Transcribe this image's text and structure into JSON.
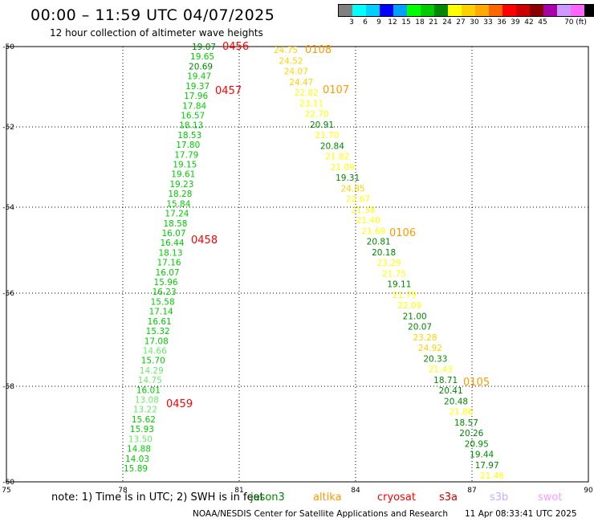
{
  "title": "00:00 – 11:59 UTC 04/07/2025",
  "subtitle": "12 hour collection of altimeter wave heights",
  "legend": {
    "colors": [
      "#808080",
      "#00ffff",
      "#00d0ff",
      "#0000ff",
      "#00a0ff",
      "#00ff00",
      "#00cc00",
      "#008800",
      "#ffff00",
      "#ffd000",
      "#ffaa00",
      "#ff6600",
      "#ff0000",
      "#cc0000",
      "#880000",
      "#aa00aa",
      "#cc99ff",
      "#ff66ff",
      "#000000"
    ],
    "labels": [
      "3",
      "6",
      "9",
      "12",
      "15",
      "18",
      "21",
      "24",
      "27",
      "30",
      "33",
      "36",
      "39",
      "42",
      "45",
      "70 (ft)"
    ]
  },
  "axes": {
    "x_ticks": [
      "75",
      "78",
      "81",
      "84",
      "87",
      "90"
    ],
    "y_ticks": [
      "-50",
      "-52",
      "-54",
      "-56",
      "-58",
      "-60"
    ]
  },
  "tracks": [
    {
      "values": [
        "19.07",
        "19.65",
        "20.69",
        "19.47",
        "19.37",
        "17.96",
        "17.84",
        "16.57",
        "18.13",
        "18.53",
        "17.80",
        "17.79",
        "19.15",
        "19.61",
        "19.23",
        "18.28",
        "15.84",
        "17.24",
        "18.58",
        "16.07",
        "16.44",
        "18.13",
        "17.16",
        "16.07",
        "15.96",
        "16.23",
        "15.58",
        "17.14",
        "16.61",
        "15.32",
        "17.08",
        "14.66",
        "15.70",
        "14.29",
        "14.75",
        "16.01",
        "13.08",
        "13.22",
        "15.62",
        "15.93",
        "13.50",
        "14.88",
        "14.03",
        "15.89"
      ],
      "colors": [
        "#008800",
        "#00cc00",
        "#008800",
        "#00cc00",
        "#00cc00",
        "#00cc00",
        "#00cc00",
        "#00cc00",
        "#00cc00",
        "#00cc00",
        "#00cc00",
        "#00cc00",
        "#00cc00",
        "#00cc00",
        "#00cc00",
        "#00cc00",
        "#00cc00",
        "#00cc00",
        "#00cc00",
        "#00cc00",
        "#00cc00",
        "#00cc00",
        "#00cc00",
        "#00cc00",
        "#00cc00",
        "#00cc00",
        "#00cc00",
        "#00cc00",
        "#00cc00",
        "#00cc00",
        "#00cc00",
        "#66ee66",
        "#00cc00",
        "#66ee66",
        "#66ee66",
        "#00cc00",
        "#66ee66",
        "#66ee66",
        "#00cc00",
        "#00cc00",
        "#66ee66",
        "#00cc00",
        "#00cc00",
        "#00cc00"
      ]
    },
    {
      "values": [
        "24.75",
        "24.52",
        "24.07",
        "24.47",
        "22.82",
        "23.11",
        "22.70",
        "20.91",
        "21.70",
        "20.84",
        "21.82",
        "21.09",
        "19.31",
        "24.85",
        "22.67",
        "21.38",
        "21.40",
        "21.69",
        "20.81",
        "20.18",
        "23.29",
        "21.75",
        "19.11",
        "21.79",
        "22.09",
        "21.00",
        "20.07",
        "23.28",
        "24.92",
        "20.33",
        "21.43",
        "18.71",
        "20.41",
        "20.48",
        "21.86",
        "18.57",
        "20.26",
        "20.95",
        "19.44",
        "17.97",
        "21.46"
      ],
      "colors": [
        "#ffd000",
        "#ffd000",
        "#ffd000",
        "#ffd000",
        "#ffff00",
        "#ffff00",
        "#ffff00",
        "#008800",
        "#ffff00",
        "#008800",
        "#ffff00",
        "#ffff00",
        "#008800",
        "#ffd000",
        "#ffff00",
        "#ffff00",
        "#ffff00",
        "#ffff00",
        "#008800",
        "#008800",
        "#ffff00",
        "#ffff00",
        "#008800",
        "#ffff00",
        "#ffff00",
        "#008800",
        "#008800",
        "#ffd000",
        "#ffd000",
        "#008800",
        "#ffff00",
        "#008800",
        "#008800",
        "#008800",
        "#ffff00",
        "#008800",
        "#008800",
        "#008800",
        "#008800",
        "#008800",
        "#ffff00"
      ]
    }
  ],
  "time_labels": [
    {
      "text": "0456",
      "color": "#ff0000"
    },
    {
      "text": "0457",
      "color": "#ff0000"
    },
    {
      "text": "0458",
      "color": "#ff0000"
    },
    {
      "text": "0459",
      "color": "#ff0000"
    },
    {
      "text": "0108",
      "color": "#ff9900"
    },
    {
      "text": "0107",
      "color": "#ff9900"
    },
    {
      "text": "0106",
      "color": "#ff9900"
    },
    {
      "text": "0105",
      "color": "#ff9900"
    }
  ],
  "footnote": "note:  1) Time is in UTC;  2) SWH is in feet",
  "satellites": [
    {
      "name": "jason3",
      "color": "#008800"
    },
    {
      "name": "altika",
      "color": "#ff9900"
    },
    {
      "name": "cryosat",
      "color": "#ff0000"
    },
    {
      "name": "s3a",
      "color": "#cc0000"
    },
    {
      "name": "s3b",
      "color": "#ccaaff"
    },
    {
      "name": "swot",
      "color": "#ff99ff"
    }
  ],
  "credit": "NOAA/NESDIS Center for Satellite Applications and Research",
  "generated": "11 Apr 08:33:41 UTC 2025"
}
